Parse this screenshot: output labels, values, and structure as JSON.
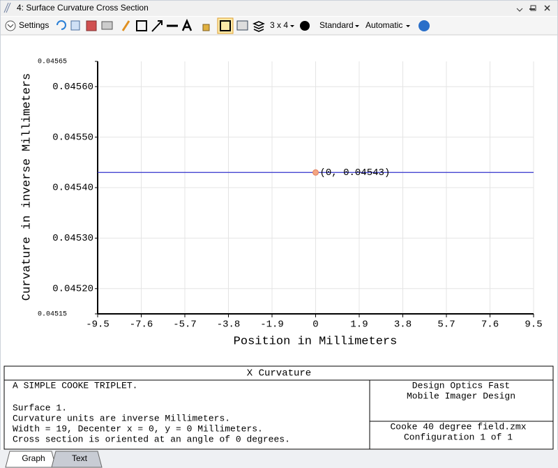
{
  "window": {
    "title": "4: Surface Curvature Cross Section"
  },
  "toolbar": {
    "settings": "Settings",
    "layout": "3 x 4",
    "standard": "Standard",
    "automatic": "Automatic"
  },
  "chart_data": {
    "type": "line",
    "xlabel": "Position in Millimeters",
    "ylabel": "Curvature in inverse Millimeters",
    "x": [
      -9.5,
      9.5
    ],
    "series": [
      {
        "color": "#3333cc",
        "values": [
          0.04543,
          0.04543
        ]
      }
    ],
    "xlim": [
      -9.5,
      9.5
    ],
    "xticks": [
      -9.5,
      -7.6,
      -5.7,
      -3.8,
      -1.9,
      0,
      1.9,
      3.8,
      5.7,
      7.6,
      9.5
    ],
    "ylim": [
      0.04515,
      0.04565
    ],
    "yticks": [
      0.04515,
      {
        "value": 0.0452,
        "label": "0.04520"
      },
      {
        "value": 0.0453,
        "label": "0.04530"
      },
      {
        "value": 0.0454,
        "label": "0.04540"
      },
      {
        "value": 0.0455,
        "label": "0.04550"
      },
      {
        "value": 0.0456,
        "label": "0.04560"
      },
      0.04565
    ],
    "grid": true,
    "annotation": {
      "x": 0,
      "y": 0.04543,
      "label": "(0, 0.04543)",
      "color": "#f4a582"
    }
  },
  "info": {
    "heading": "X Curvature",
    "title": "A SIMPLE COOKE TRIPLET.",
    "lines": [
      "Surface 1.",
      "Curvature units are inverse Millimeters.",
      "Width = 19, Decenter x = 0, y = 0 Millimeters.",
      "Cross section is oriented at an angle of 0 degrees."
    ],
    "company": [
      "Design Optics Fast",
      "Mobile Imager Design"
    ],
    "file": [
      "Cooke 40 degree field.zmx",
      "Configuration 1 of 1"
    ]
  },
  "tabs": [
    "Graph",
    "Text"
  ]
}
